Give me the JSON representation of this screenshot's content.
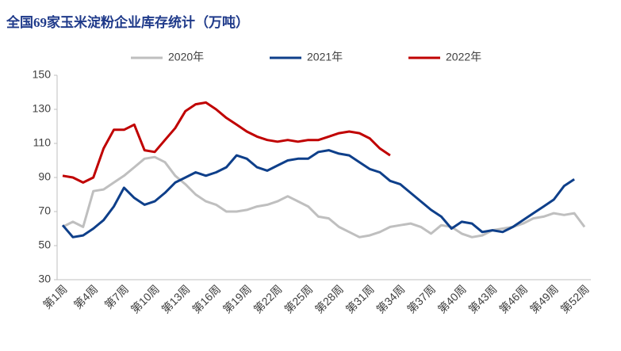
{
  "chart_data": {
    "type": "line",
    "title": "全国69家玉米淀粉企业库存统计（万吨）",
    "categories": [
      "第1周",
      null,
      null,
      "第4周",
      null,
      null,
      "第7周",
      null,
      null,
      "第10周",
      null,
      null,
      "第13周",
      null,
      null,
      "第16周",
      null,
      null,
      "第19周",
      null,
      null,
      "第22周",
      null,
      null,
      "第25周",
      null,
      null,
      "第28周",
      null,
      null,
      "第31周",
      null,
      null,
      "第34周",
      null,
      null,
      "第37周",
      null,
      null,
      "第40周",
      null,
      null,
      "第43周",
      null,
      null,
      "第46周",
      null,
      null,
      "第49周",
      null,
      null,
      "第52周"
    ],
    "series": [
      {
        "name": "2020年",
        "color": "#bfbfbf",
        "values": [
          61,
          64,
          61,
          82,
          83,
          87,
          91,
          96,
          101,
          102,
          99,
          91,
          86,
          80,
          76,
          74,
          70,
          70,
          71,
          73,
          74,
          76,
          79,
          76,
          73,
          67,
          66,
          61,
          58,
          55,
          56,
          58,
          61,
          62,
          63,
          61,
          57,
          62,
          61,
          57,
          55,
          56,
          59,
          60,
          61,
          63,
          66,
          67,
          69,
          68,
          69,
          61
        ]
      },
      {
        "name": "2021年",
        "color": "#0e3f8a",
        "values": [
          62,
          55,
          56,
          60,
          65,
          73,
          84,
          78,
          74,
          76,
          81,
          87,
          90,
          93,
          91,
          93,
          96,
          103,
          101,
          96,
          94,
          97,
          100,
          101,
          101,
          105,
          106,
          104,
          103,
          99,
          95,
          93,
          88,
          86,
          81,
          76,
          71,
          67,
          60,
          64,
          63,
          58,
          59,
          58,
          61,
          65,
          69,
          73,
          77,
          85,
          89,
          null
        ]
      },
      {
        "name": "2022年",
        "color": "#c00000",
        "values": [
          91,
          90,
          87,
          90,
          107,
          118,
          118,
          121,
          106,
          105,
          112,
          119,
          129,
          133,
          134,
          130,
          125,
          121,
          117,
          114,
          112,
          111,
          112,
          111,
          112,
          112,
          114,
          116,
          117,
          116,
          113,
          107,
          103,
          null,
          null,
          null,
          null,
          null,
          null,
          null,
          null,
          null,
          null,
          null,
          null,
          null,
          null,
          null,
          null,
          null,
          null,
          null
        ]
      }
    ],
    "ylim": [
      30,
      150
    ],
    "yticks": [
      30,
      50,
      70,
      90,
      110,
      130,
      150
    ]
  }
}
